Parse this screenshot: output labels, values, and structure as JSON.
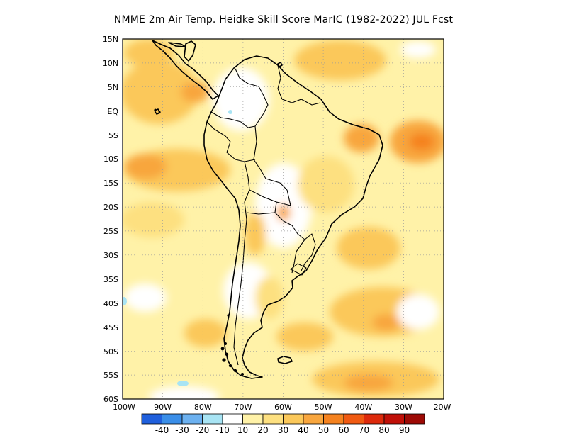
{
  "title": "NMME  2m Air Temp. Heidke Skill Score MarIC (1982-2022) JUL Fcst",
  "map": {
    "lon_range": [
      -100,
      -20
    ],
    "lat_range": [
      -60,
      15
    ],
    "lat_ticks": [
      "15N",
      "10N",
      "5N",
      "EQ",
      "5S",
      "10S",
      "15S",
      "20S",
      "25S",
      "30S",
      "35S",
      "40S",
      "45S",
      "50S",
      "55S",
      "60S"
    ],
    "lon_ticks": [
      "100W",
      "90W",
      "80W",
      "70W",
      "60W",
      "50W",
      "40W",
      "30W",
      "20W"
    ]
  },
  "colorbar": {
    "colors": [
      "#1f5fdc",
      "#3a8ee8",
      "#6cb1f0",
      "#a8e4f4",
      "#ffffff",
      "#fff2a8",
      "#fde080",
      "#fbc85a",
      "#f8a63e",
      "#f5821f",
      "#f05a12",
      "#dd2a0c",
      "#c01008",
      "#9d0a05"
    ],
    "labels": [
      "-40",
      "-30",
      "-20",
      "-10",
      "10",
      "20",
      "30",
      "40",
      "50",
      "60",
      "70",
      "80",
      "90"
    ]
  }
}
